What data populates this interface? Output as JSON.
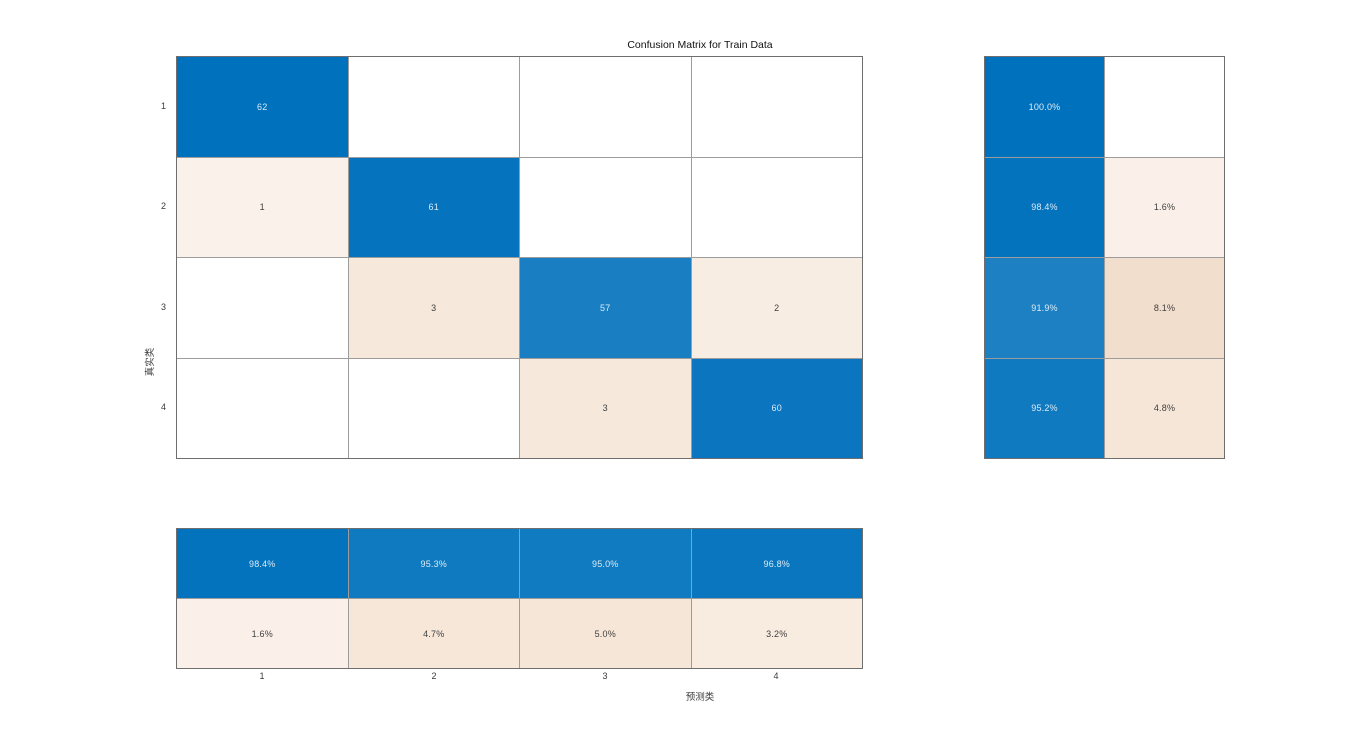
{
  "figure": {
    "title": "Confusion Matrix for Train Data",
    "xlabel": "预测类",
    "ylabel": "真实类"
  },
  "chart_data": {
    "type": "heatmap",
    "subtype": "confusion-matrix",
    "title": "Confusion Matrix for Train Data",
    "xlabel": "预测类",
    "ylabel": "真实类",
    "classes": [
      "1",
      "2",
      "3",
      "4"
    ],
    "counts": [
      [
        62,
        null,
        null,
        null
      ],
      [
        1,
        61,
        null,
        null
      ],
      [
        null,
        3,
        57,
        2
      ],
      [
        null,
        null,
        3,
        60
      ]
    ],
    "row_summary": {
      "correct_pct": [
        "100.0%",
        "98.4%",
        "91.9%",
        "95.2%"
      ],
      "incorrect_pct": [
        null,
        "1.6%",
        "8.1%",
        "4.8%"
      ]
    },
    "column_summary": {
      "correct_pct": [
        "98.4%",
        "95.3%",
        "95.0%",
        "96.8%"
      ],
      "incorrect_pct": [
        "1.6%",
        "4.7%",
        "5.0%",
        "3.2%"
      ]
    },
    "colors": {
      "diagonal_base": "#0072BD",
      "off_diagonal_base": "#D95319",
      "background": "#FFFFFF",
      "grid_line": "#9C9C9C",
      "axes_border": "#6E6E6E",
      "text_on_dark": "#DCEBF6",
      "text_on_light": "#3F3F3F",
      "tick_text": "#3B3B3B"
    },
    "cell_colors": {
      "main": [
        [
          "#0072BD",
          "#FFFFFF",
          "#FFFFFF",
          "#FFFFFF"
        ],
        [
          "#FAF1EA",
          "#0573BE",
          "#FFFFFF",
          "#FFFFFF"
        ],
        [
          "#FFFFFF",
          "#F6E8DB",
          "#1A7EC2",
          "#F8EDE3"
        ],
        [
          "#FFFFFF",
          "#FFFFFF",
          "#F6E8DB",
          "#0B76BF"
        ]
      ],
      "row_summary": [
        [
          "#0072BD",
          "#FFFFFF"
        ],
        [
          "#0473BE",
          "#FAF0E9"
        ],
        [
          "#1D80C3",
          "#F2DECD"
        ],
        [
          "#0F7AC0",
          "#F6E6D8"
        ]
      ],
      "column_summary": [
        [
          "#0473BE",
          "#0F7AC0",
          "#107BC0",
          "#0976BF"
        ],
        [
          "#FAF0E9",
          "#F6E7D9",
          "#F6E6D7",
          "#F8EBE0"
        ]
      ]
    }
  }
}
